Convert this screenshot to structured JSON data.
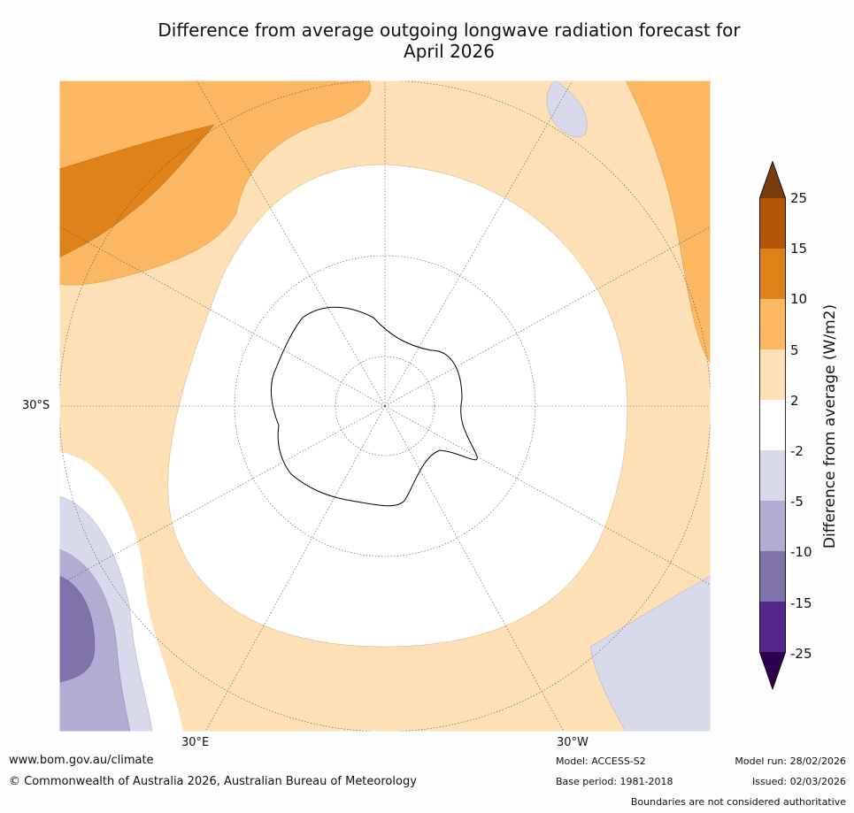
{
  "title": {
    "line1": "Difference from average outgoing longwave radiation forecast for",
    "line2": "April 2026"
  },
  "map": {
    "projection": "south-polar-stereographic",
    "labels": {
      "lat": "30°S",
      "lon_east": "30°E",
      "lon_west": "30°W"
    }
  },
  "colorbar": {
    "label": "Difference from average (W/m2)",
    "ticks": [
      "25",
      "15",
      "10",
      "5",
      "2",
      "-2",
      "-5",
      "-10",
      "-15",
      "-25"
    ],
    "colors": {
      "gt25": "#7a3c0a",
      "b15_25": "#b35706",
      "b10_15": "#e0821a",
      "b5_10": "#fbb761",
      "b2_5": "#fde0b5",
      "neutral": "#ffffff",
      "n2_5": "#d8daeb",
      "n5_10": "#b2abd2",
      "n10_15": "#8073ac",
      "n15_25": "#542788",
      "lt_n25": "#2d004b"
    }
  },
  "footer": {
    "website": "www.bom.gov.au/climate",
    "copyright": "© Commonwealth of Australia 2026, Australian Bureau of Meteorology",
    "model": "Model: ACCESS-S2",
    "base_period": "Base period: 1981-2018",
    "model_run": "Model run: 28/02/2026",
    "issued": "Issued: 02/03/2026",
    "disclaimer": "Boundaries are not considered authoritative"
  }
}
